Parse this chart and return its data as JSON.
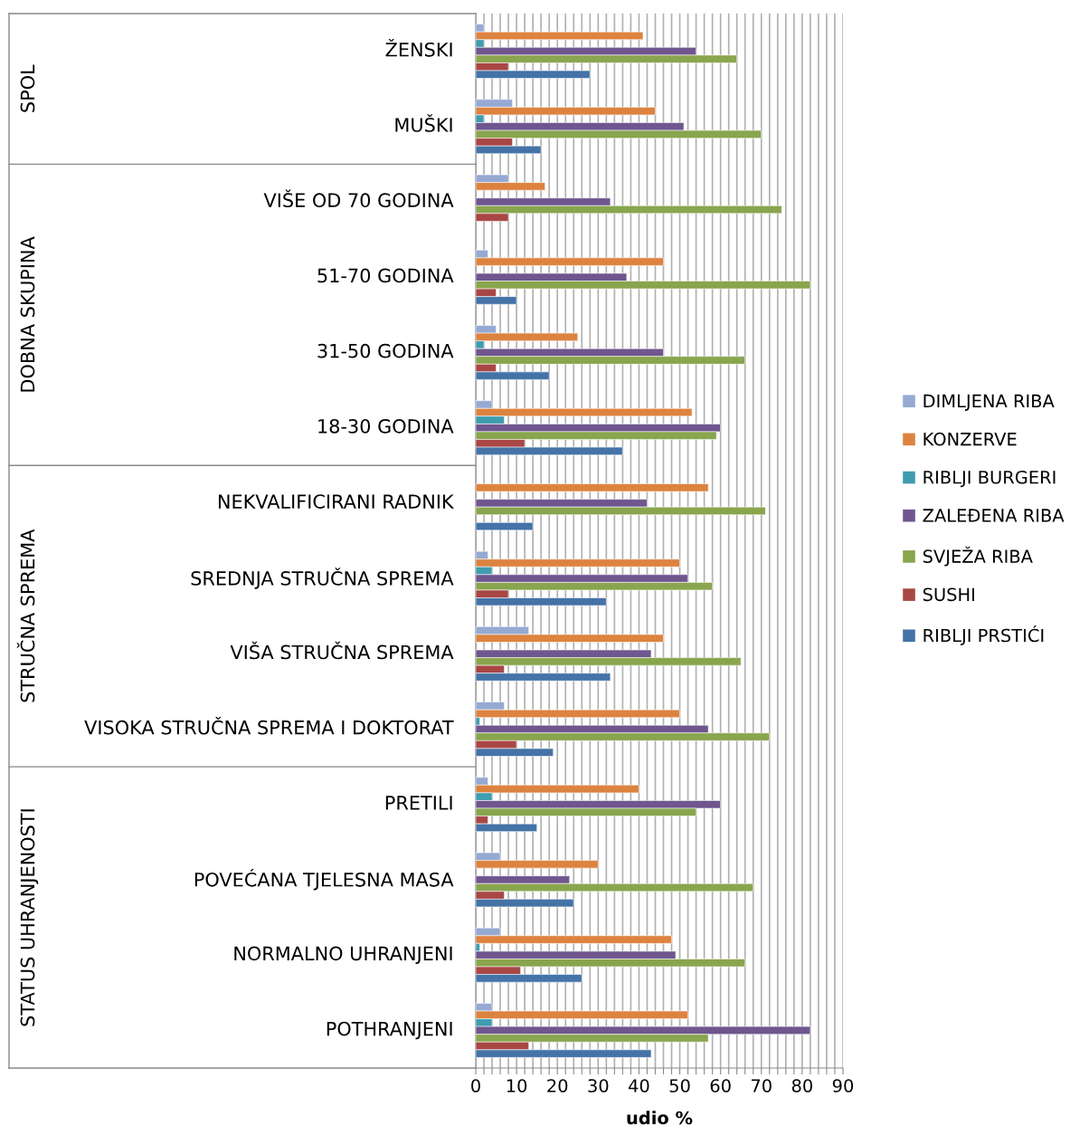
{
  "chart_data": {
    "type": "bar",
    "orientation": "horizontal",
    "xlabel": "udio %",
    "categories": [
      "ŽENSKI",
      "MUŠKI",
      "VIŠE OD 70 GODINA",
      "51-70 GODINA",
      "31-50 GODINA",
      "18-30 GODINA",
      "NEKVALIFICIRANI RADNIK",
      "SREDNJA STRUČNA SPREMA",
      "VIŠA STRUČNA SPREMA",
      "VISOKA STRUČNA SPREMA I DOKTORAT",
      "PRETILI",
      "POVEĆANA TJELESNA MASA",
      "NORMALNO UHRANJENI",
      "POTHRANJENI"
    ],
    "annotations": [
      "SPOL",
      "DOBNA SKUPINA",
      "STRUČNA SPREMA",
      "STATUS UHRANJENOSTI"
    ],
    "series": [
      {
        "name": "DIMLJENA RIBA",
        "color": "#95a9d2",
        "values": [
          2,
          9,
          8,
          3,
          5,
          4,
          null,
          3,
          13,
          7,
          3,
          6,
          6,
          4
        ]
      },
      {
        "name": "KONZERVE",
        "color": "#dd8340",
        "values": [
          41,
          44,
          17,
          46,
          25,
          53,
          57,
          50,
          46,
          50,
          40,
          30,
          48,
          52
        ]
      },
      {
        "name": "RIBLJI BURGERI",
        "color": "#3f9db0",
        "values": [
          2,
          2,
          null,
          null,
          2,
          7,
          null,
          4,
          null,
          1,
          4,
          null,
          1,
          4
        ]
      },
      {
        "name": "ZALEĐENA RIBA",
        "color": "#6f568f",
        "values": [
          54,
          51,
          33,
          37,
          46,
          60,
          42,
          52,
          43,
          57,
          60,
          23,
          49,
          82
        ]
      },
      {
        "name": "SVJEŽA RIBA",
        "color": "#89a54e",
        "values": [
          64,
          70,
          75,
          82,
          66,
          59,
          71,
          58,
          65,
          72,
          54,
          68,
          66,
          57
        ]
      },
      {
        "name": "SUSHI",
        "color": "#a94745",
        "values": [
          8,
          9,
          8,
          5,
          5,
          12,
          null,
          8,
          7,
          10,
          3,
          7,
          11,
          13
        ]
      },
      {
        "name": "RIBLJI PRSTIĆI",
        "color": "#4573a7",
        "values": [
          28,
          16,
          null,
          10,
          18,
          36,
          14,
          32,
          33,
          19,
          15,
          24,
          26,
          43
        ]
      }
    ],
    "xlim": [
      0,
      90
    ],
    "xticks": [
      0,
      {
        "value": 2,
        "label": null
      },
      {
        "value": 4,
        "label": null
      },
      {
        "value": 6,
        "label": null
      },
      {
        "value": 8,
        "label": null
      },
      10,
      {
        "value": 12,
        "label": null
      },
      {
        "value": 14,
        "label": null
      },
      {
        "value": 16,
        "label": null
      },
      {
        "value": 18,
        "label": null
      },
      20,
      {
        "value": 22,
        "label": null
      },
      {
        "value": 24,
        "label": null
      },
      {
        "value": 26,
        "label": null
      },
      {
        "value": 28,
        "label": null
      },
      30,
      {
        "value": 32,
        "label": null
      },
      {
        "value": 34,
        "label": null
      },
      {
        "value": 36,
        "label": null
      },
      {
        "value": 38,
        "label": null
      },
      40,
      {
        "value": 42,
        "label": null
      },
      {
        "value": 44,
        "label": null
      },
      {
        "value": 46,
        "label": null
      },
      {
        "value": 48,
        "label": null
      },
      50,
      {
        "value": 52,
        "label": null
      },
      {
        "value": 54,
        "label": null
      },
      {
        "value": 56,
        "label": null
      },
      {
        "value": 58,
        "label": null
      },
      60,
      {
        "value": 62,
        "label": null
      },
      {
        "value": 64,
        "label": null
      },
      {
        "value": 66,
        "label": null
      },
      {
        "value": 68,
        "label": null
      },
      70,
      {
        "value": 72,
        "label": null
      },
      {
        "value": 74,
        "label": null
      },
      {
        "value": 76,
        "label": null
      },
      {
        "value": 78,
        "label": null
      },
      80,
      {
        "value": 82,
        "label": null
      },
      {
        "value": 84,
        "label": null
      },
      {
        "value": 86,
        "label": null
      },
      {
        "value": 88,
        "label": null
      },
      90
    ],
    "grid": "x",
    "legend": "right"
  }
}
